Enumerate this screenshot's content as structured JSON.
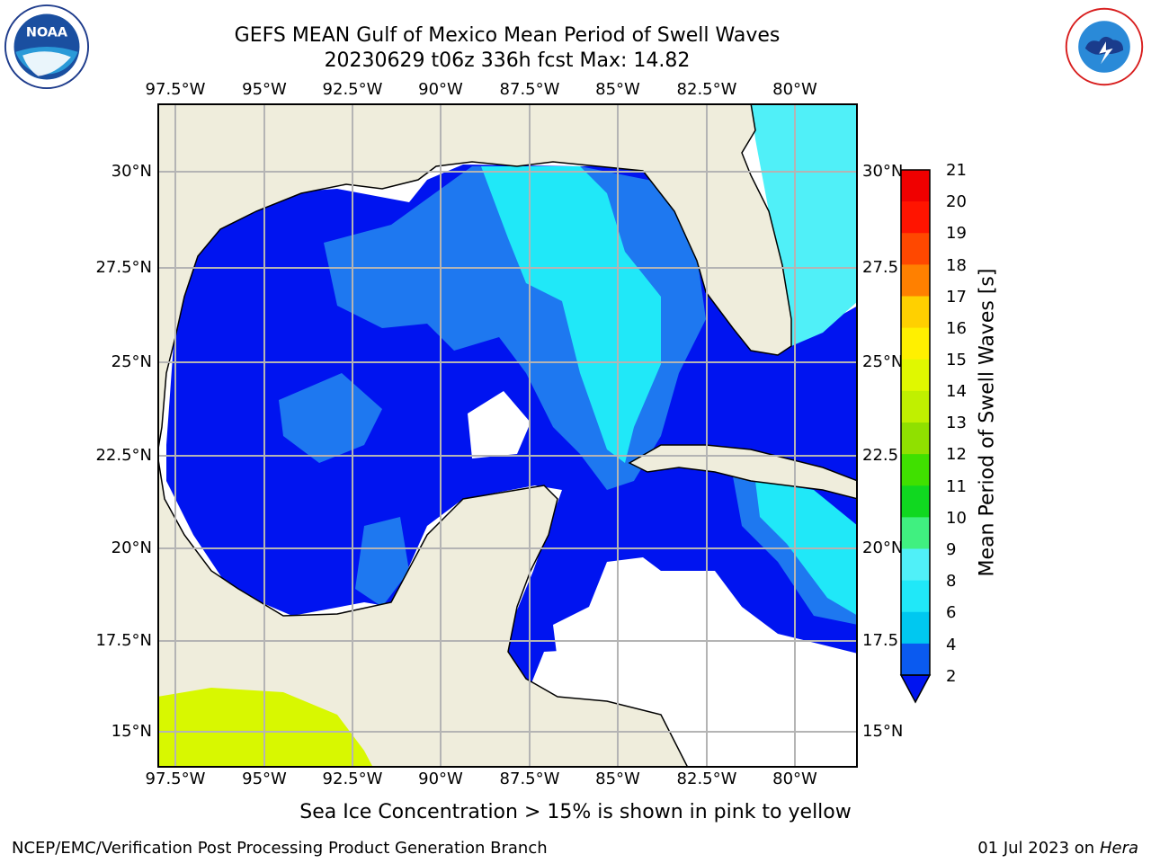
{
  "title_line1": "GEFS MEAN Gulf of Mexico Mean Period of Swell Waves",
  "title_line2": "20230629 t06z 336h fcst   Max: 14.82",
  "map": {
    "lon_labels": [
      "97.5°W",
      "95°W",
      "92.5°W",
      "90°W",
      "87.5°W",
      "85°W",
      "82.5°W",
      "80°W"
    ],
    "lat_labels": [
      "30°N",
      "27.5°N",
      "25°N",
      "22.5°N",
      "20°N",
      "17.5°N",
      "15°N"
    ],
    "right_lat_labels": [
      "30°N",
      "27.5",
      "25°N",
      "22.5",
      "20°N",
      "17.5",
      "15°N"
    ],
    "land_color": "#efeddc",
    "ocean_no_data_color": "#ffffff",
    "grid_color": "#b4b4b4"
  },
  "colorbar": {
    "label": "Mean Period of Swell Waves [s]",
    "ticks": [
      "21",
      "20",
      "19",
      "18",
      "17",
      "16",
      "15",
      "14",
      "13",
      "12",
      "11",
      "10",
      "9",
      "8",
      "6",
      "4",
      "2"
    ],
    "colors": [
      "#0a5af0",
      "#00c8f0",
      "#20e8f8",
      "#50f0f8",
      "#90fff0",
      "#40f080",
      "#10d820",
      "#40e000",
      "#90e000",
      "#c0f000",
      "#e0f800",
      "#fff000",
      "#ffd000",
      "#ffa800",
      "#ff8000",
      "#ff4800",
      "#ff1400",
      "#f00000"
    ],
    "extend_color": "#0014f0"
  },
  "note": "Sea Ice Concentration > 15% is shown in pink to yellow",
  "footer_left": "NCEP/EMC/Verification Post Processing Product Generation Branch",
  "footer_date": "01 Jul 2023 on ",
  "footer_machine": "Hera",
  "logos": {
    "left": "noaa-logo",
    "right": "national-weather-service-logo"
  }
}
